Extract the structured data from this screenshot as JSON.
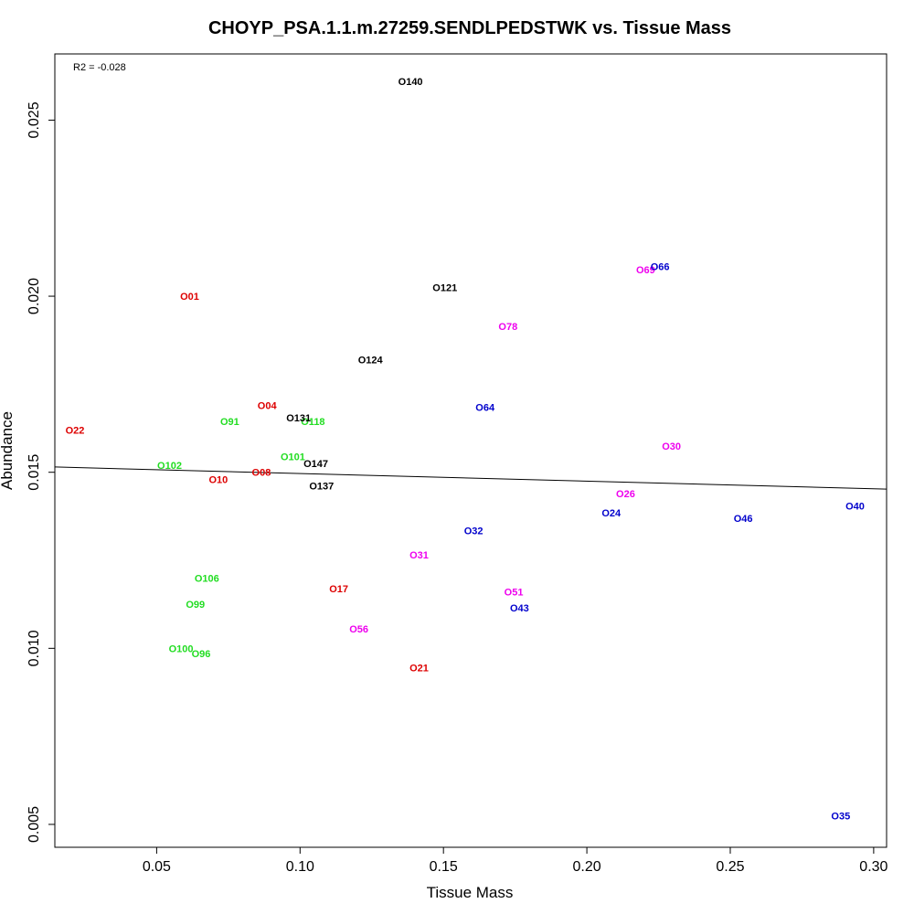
{
  "chart_data": {
    "type": "scatter",
    "title": "CHOYP_PSA.1.1.m.27259.SENDLPEDSTWK vs. Tissue Mass",
    "xlabel": "Tissue Mass",
    "ylabel": "Abundance",
    "xlim": [
      0.0145,
      0.3045
    ],
    "ylim": [
      0.00435,
      0.02688
    ],
    "xticks": [
      0.05,
      0.1,
      0.15,
      0.2,
      0.25,
      0.3
    ],
    "xtick_labels": [
      "0.05",
      "0.10",
      "0.15",
      "0.20",
      "0.25",
      "0.30"
    ],
    "yticks": [
      0.005,
      0.01,
      0.015,
      0.02,
      0.025
    ],
    "ytick_labels": [
      "0.005",
      "0.010",
      "0.015",
      "0.020",
      "0.025"
    ],
    "annotation": "R2 = -0.028",
    "regression_line": {
      "x": [
        0.0145,
        0.3045
      ],
      "y": [
        0.01515,
        0.01452
      ]
    },
    "colors": {
      "red": "#dd0000",
      "green": "#22dd22",
      "black": "#000000",
      "magenta": "#ee00ee",
      "blue": "#0000cc"
    },
    "points": [
      {
        "label": "O01",
        "x": 0.0615,
        "y": 0.02,
        "color": "red"
      },
      {
        "label": "O22",
        "x": 0.0215,
        "y": 0.0162,
        "color": "red"
      },
      {
        "label": "O04",
        "x": 0.0885,
        "y": 0.0169,
        "color": "red"
      },
      {
        "label": "O10",
        "x": 0.0715,
        "y": 0.0148,
        "color": "red"
      },
      {
        "label": "O08",
        "x": 0.0865,
        "y": 0.015,
        "color": "red"
      },
      {
        "label": "O17",
        "x": 0.1135,
        "y": 0.0117,
        "color": "red"
      },
      {
        "label": "O21",
        "x": 0.1415,
        "y": 0.00945,
        "color": "red"
      },
      {
        "label": "O91",
        "x": 0.0755,
        "y": 0.01645,
        "color": "green"
      },
      {
        "label": "O118",
        "x": 0.1045,
        "y": 0.01645,
        "color": "green"
      },
      {
        "label": "O102",
        "x": 0.0545,
        "y": 0.0152,
        "color": "green"
      },
      {
        "label": "O101",
        "x": 0.0975,
        "y": 0.01545,
        "color": "green"
      },
      {
        "label": "O106",
        "x": 0.0675,
        "y": 0.012,
        "color": "green"
      },
      {
        "label": "O99",
        "x": 0.0635,
        "y": 0.01125,
        "color": "green"
      },
      {
        "label": "O100",
        "x": 0.0585,
        "y": 0.01,
        "color": "green"
      },
      {
        "label": "O96",
        "x": 0.0655,
        "y": 0.00985,
        "color": "green"
      },
      {
        "label": "O140",
        "x": 0.1385,
        "y": 0.0261,
        "color": "black"
      },
      {
        "label": "O121",
        "x": 0.1505,
        "y": 0.02025,
        "color": "black"
      },
      {
        "label": "O124",
        "x": 0.1245,
        "y": 0.0182,
        "color": "black"
      },
      {
        "label": "O131",
        "x": 0.0995,
        "y": 0.01655,
        "color": "black"
      },
      {
        "label": "O147",
        "x": 0.1055,
        "y": 0.01525,
        "color": "black"
      },
      {
        "label": "O137",
        "x": 0.1075,
        "y": 0.01462,
        "color": "black"
      },
      {
        "label": "O69",
        "x": 0.2205,
        "y": 0.02075,
        "color": "magenta"
      },
      {
        "label": "O78",
        "x": 0.1725,
        "y": 0.01915,
        "color": "magenta"
      },
      {
        "label": "O30",
        "x": 0.2295,
        "y": 0.01575,
        "color": "magenta"
      },
      {
        "label": "O26",
        "x": 0.2135,
        "y": 0.0144,
        "color": "magenta"
      },
      {
        "label": "O31",
        "x": 0.1415,
        "y": 0.01265,
        "color": "magenta"
      },
      {
        "label": "O51",
        "x": 0.1745,
        "y": 0.0116,
        "color": "magenta"
      },
      {
        "label": "O56",
        "x": 0.1205,
        "y": 0.01055,
        "color": "magenta"
      },
      {
        "label": "O66",
        "x": 0.2255,
        "y": 0.02085,
        "color": "blue"
      },
      {
        "label": "O64",
        "x": 0.1645,
        "y": 0.01685,
        "color": "blue"
      },
      {
        "label": "O24",
        "x": 0.2085,
        "y": 0.01385,
        "color": "blue"
      },
      {
        "label": "O46",
        "x": 0.2545,
        "y": 0.0137,
        "color": "blue"
      },
      {
        "label": "O40",
        "x": 0.2935,
        "y": 0.01405,
        "color": "blue"
      },
      {
        "label": "O32",
        "x": 0.1605,
        "y": 0.01335,
        "color": "blue"
      },
      {
        "label": "O43",
        "x": 0.1765,
        "y": 0.01115,
        "color": "blue"
      },
      {
        "label": "O35",
        "x": 0.2885,
        "y": 0.00525,
        "color": "blue"
      }
    ]
  }
}
